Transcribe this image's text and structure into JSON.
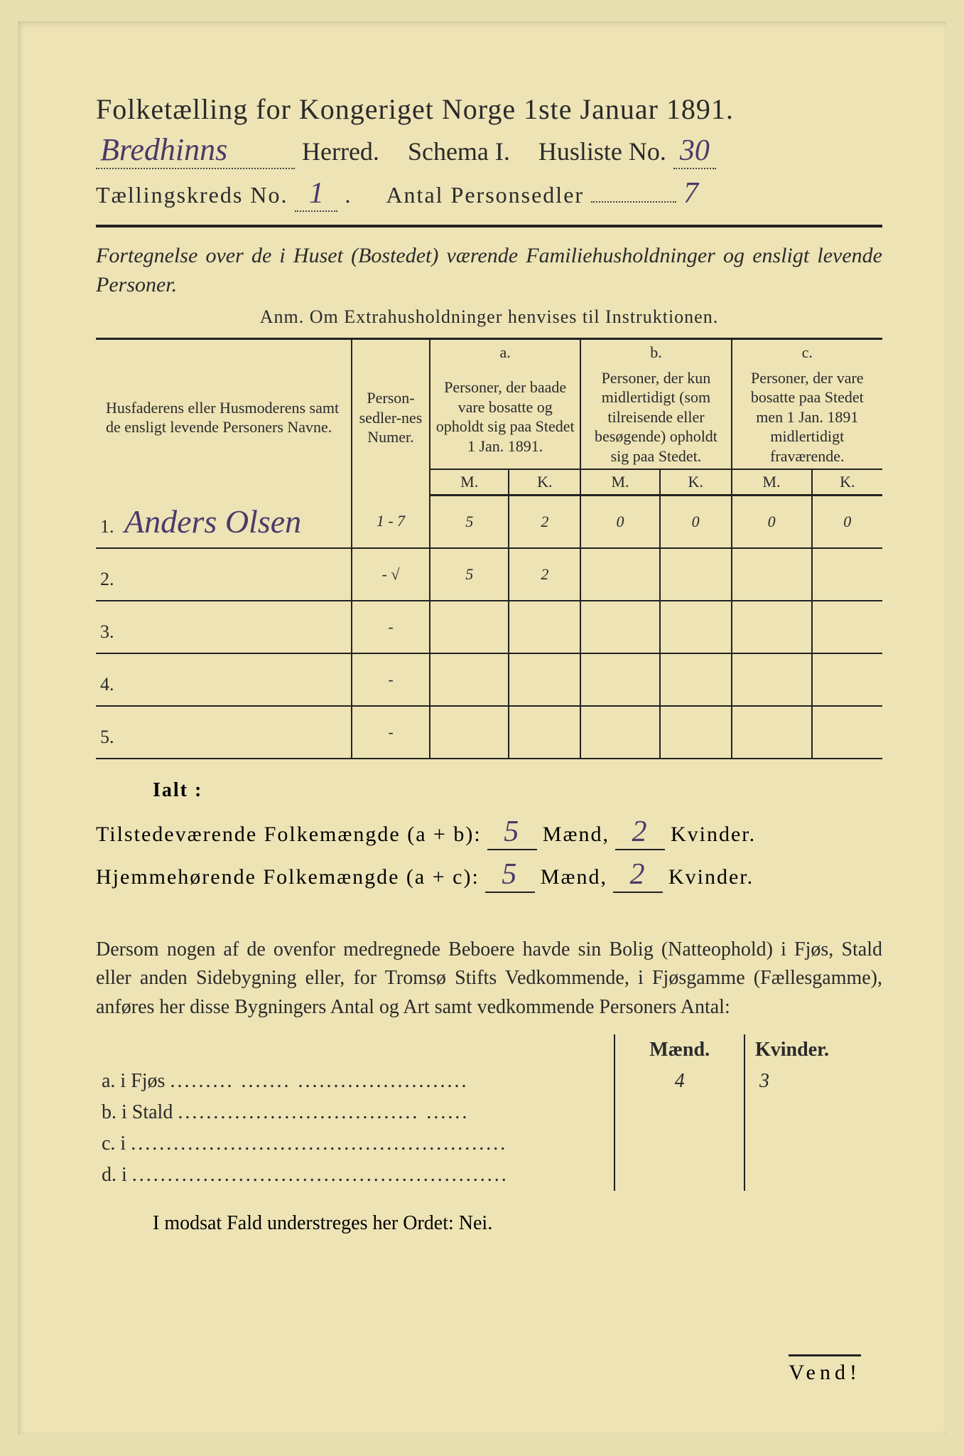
{
  "colors": {
    "paper": "#ede3b5",
    "outer": "#e8dfb0",
    "ink": "#2a2a2a",
    "handwriting": "#4a3a6a",
    "frame": "#000000"
  },
  "title": "Folketælling for Kongeriget Norge 1ste Januar 1891.",
  "header": {
    "herred_handwritten": "Bredhinns",
    "herred_label": "Herred.",
    "schema_label": "Schema I.",
    "husliste_label": "Husliste No.",
    "husliste_no": "30",
    "kreds_label": "Tællingskreds No.",
    "kreds_no": "1",
    "antal_label": "Antal Personsedler",
    "antal_value": "7"
  },
  "subtitle": "Fortegnelse over de i Huset (Bostedet) værende Familiehusholdninger og ensligt levende Personer.",
  "anm": "Anm.  Om Extrahusholdninger henvises til Instruktionen.",
  "table": {
    "col1": "Husfaderens eller Husmoderens samt de ensligt levende Personers Navne.",
    "col2": "Person-sedler-nes Numer.",
    "col_a_label": "a.",
    "col_a": "Personer, der baade vare bosatte og opholdt sig paa Stedet 1 Jan. 1891.",
    "col_b_label": "b.",
    "col_b": "Personer, der kun midlertidigt (som tilreisende eller besøgende) opholdt sig paa Stedet.",
    "col_c_label": "c.",
    "col_c": "Personer, der vare bosatte paa Stedet men 1 Jan. 1891 midlertidigt fraværende.",
    "m": "M.",
    "k": "K.",
    "rows": [
      {
        "num": "1.",
        "name": "Anders Olsen",
        "sedler": "1 - 7",
        "aM": "5",
        "aK": "2",
        "bM": "0",
        "bK": "0",
        "cM": "0",
        "cK": "0"
      },
      {
        "num": "2.",
        "name": "",
        "sedler": "- √",
        "aM": "5",
        "aK": "2",
        "bM": "",
        "bK": "",
        "cM": "",
        "cK": ""
      },
      {
        "num": "3.",
        "name": "",
        "sedler": "-",
        "aM": "",
        "aK": "",
        "bM": "",
        "bK": "",
        "cM": "",
        "cK": ""
      },
      {
        "num": "4.",
        "name": "",
        "sedler": "-",
        "aM": "",
        "aK": "",
        "bM": "",
        "bK": "",
        "cM": "",
        "cK": ""
      },
      {
        "num": "5.",
        "name": "",
        "sedler": "-",
        "aM": "",
        "aK": "",
        "bM": "",
        "bK": "",
        "cM": "",
        "cK": ""
      }
    ]
  },
  "totals": {
    "ialt": "Ialt :",
    "line1_label": "Tilstedeværende Folkemængde (a + b):",
    "line1_m": "5",
    "line1_k": "2",
    "line2_label": "Hjemmehørende Folkemængde (a + c):",
    "line2_m": "5",
    "line2_k": "2",
    "maend": "Mænd,",
    "kvinder": "Kvinder."
  },
  "para": "Dersom nogen af de ovenfor medregnede Beboere havde sin Bolig (Natteophold) i Fjøs, Stald eller anden Sidebygning eller, for Tromsø Stifts Vedkommende, i Fjøsgamme (Fællesgamme), anføres her disse Bygningers Antal og Art samt vedkommende Personers Antal:",
  "bygn": {
    "maend": "Mænd.",
    "kvinder": "Kvinder.",
    "rows": [
      {
        "label": "a.  i      Fjøs",
        "dots": "......... ....... ........................",
        "m": "4",
        "k": "3"
      },
      {
        "label": "b.  i      Stald",
        "dots": ".................................. ......",
        "m": "",
        "k": ""
      },
      {
        "label": "c.  i",
        "dots": ".....................................................",
        "m": "",
        "k": ""
      },
      {
        "label": "d.  i",
        "dots": ".....................................................",
        "m": "",
        "k": ""
      }
    ]
  },
  "nei": "I modsat Fald understreges her Ordet: Nei.",
  "vend": "Vend!"
}
